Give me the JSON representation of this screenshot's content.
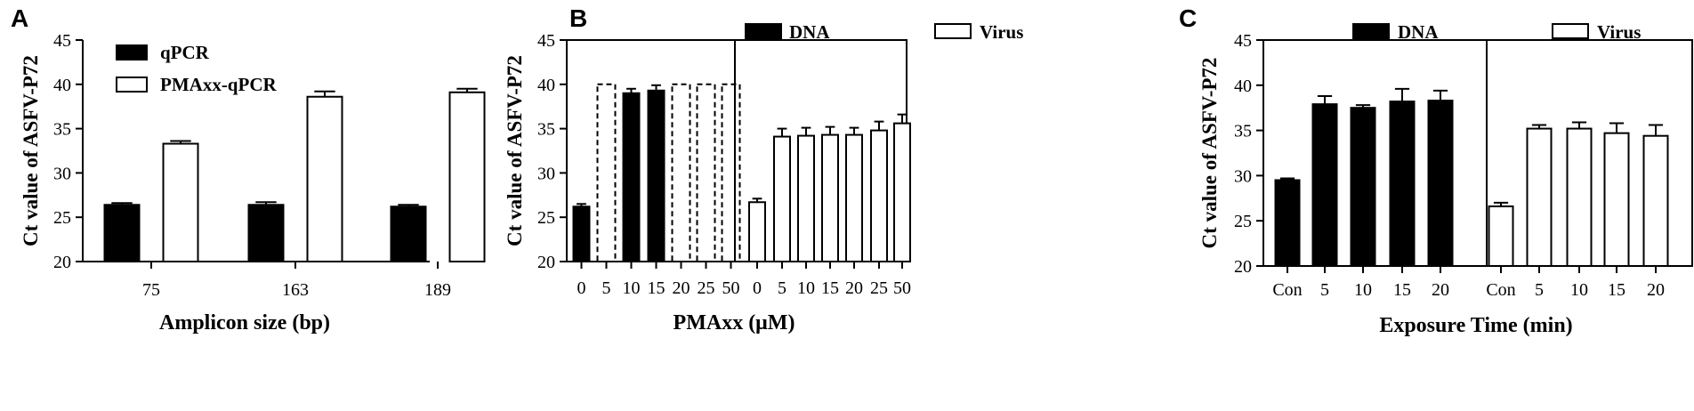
{
  "chart_data": [
    {
      "panel": "A",
      "type": "bar",
      "categories": [
        "75",
        "163",
        "189"
      ],
      "series": [
        {
          "name": "qPCR",
          "values": [
            26.4,
            26.4,
            26.2
          ],
          "errors": [
            0.2,
            0.3,
            0.2
          ],
          "fill": "#000000"
        },
        {
          "name": "PMAxx-qPCR",
          "values": [
            33.3,
            38.6,
            39.1
          ],
          "errors": [
            0.3,
            0.6,
            0.4
          ],
          "fill": "#ffffff"
        }
      ],
      "xlabel": "Amplicon size (bp)",
      "ylabel": "Ct value of ASFV-P72",
      "ylim": [
        20,
        45
      ],
      "yticks": [
        "20",
        "25",
        "30",
        "35",
        "40",
        "45"
      ],
      "legend_position": "top-left"
    },
    {
      "panel": "B",
      "type": "bar",
      "legend": [
        {
          "name": "DNA",
          "fill": "#000000"
        },
        {
          "name": "Virus",
          "fill": "#ffffff"
        }
      ],
      "groups": [
        {
          "name": "DNA",
          "categories": [
            "0",
            "5",
            "10",
            "15",
            "20",
            "25",
            "50"
          ],
          "values": [
            26.2,
            40,
            39.0,
            39.3,
            40,
            40,
            40
          ],
          "errors": [
            0.3,
            0,
            0.5,
            0.6,
            0,
            0,
            0
          ],
          "undetected": [
            false,
            true,
            false,
            false,
            true,
            true,
            true
          ]
        },
        {
          "name": "Virus",
          "categories": [
            "0",
            "5",
            "10",
            "15",
            "20",
            "25",
            "50"
          ],
          "values": [
            26.7,
            34.1,
            34.2,
            34.3,
            34.3,
            34.8,
            35.6
          ],
          "errors": [
            0.4,
            0.9,
            0.9,
            0.9,
            0.8,
            1.0,
            1.0
          ],
          "undetected": [
            false,
            false,
            false,
            false,
            false,
            false,
            false
          ]
        }
      ],
      "xlabel": "PMAxx (μM)",
      "ylabel": "Ct value of ASFV-P72",
      "ylim": [
        20,
        45
      ],
      "yticks": [
        "20",
        "25",
        "30",
        "35",
        "40",
        "45"
      ]
    },
    {
      "panel": "C",
      "type": "bar",
      "legend": [
        {
          "name": "DNA",
          "fill": "#000000"
        },
        {
          "name": "Virus",
          "fill": "#ffffff"
        }
      ],
      "groups": [
        {
          "name": "DNA",
          "categories": [
            "Con",
            "5",
            "10",
            "15",
            "20"
          ],
          "values": [
            29.5,
            37.9,
            37.5,
            38.2,
            38.3
          ],
          "errors": [
            0.2,
            0.9,
            0.3,
            1.4,
            1.1
          ]
        },
        {
          "name": "Virus",
          "categories": [
            "Con",
            "5",
            "10",
            "15",
            "20"
          ],
          "values": [
            26.6,
            35.2,
            35.2,
            34.7,
            34.4
          ],
          "errors": [
            0.4,
            0.4,
            0.7,
            1.1,
            1.2
          ]
        }
      ],
      "xlabel": "Exposure Time (min)",
      "ylabel": "Ct value of ASFV-P72",
      "ylim": [
        20,
        45
      ],
      "yticks": [
        "20",
        "25",
        "30",
        "35",
        "40",
        "45"
      ]
    }
  ]
}
